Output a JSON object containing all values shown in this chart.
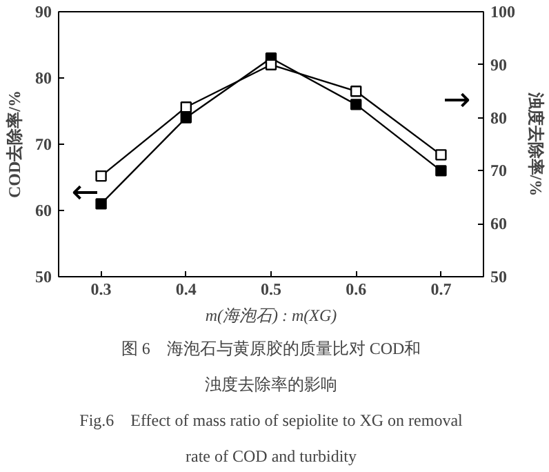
{
  "chart_data": {
    "type": "line",
    "xlabel": "m(海泡石) : m(XG)",
    "ylabel": "COD去除率/%",
    "y2label": "浊度去除率/%",
    "x": [
      0.3,
      0.4,
      0.5,
      0.6,
      0.7
    ],
    "series": [
      {
        "color": "#000000",
        "values": [
          61,
          74,
          83,
          76,
          66
        ]
      },
      {
        "color": "#000000",
        "values": [
          69,
          82,
          90,
          85,
          73
        ],
        "axis": "y2"
      }
    ],
    "xlim": [
      0.25,
      0.75
    ],
    "xticks": [
      0.3,
      0.4,
      0.5,
      0.6,
      0.7
    ],
    "ylim": [
      50,
      90
    ],
    "yticks": [
      50,
      60,
      70,
      80,
      90
    ],
    "y2lim": [
      50,
      100
    ],
    "y2ticks": [
      50,
      60,
      70,
      80,
      90,
      100
    ],
    "marker": "square",
    "line_style": "solid",
    "grid": false,
    "annotations": [
      "←",
      "→",
      "图 6　海泡石与黄原胶的质量比对 COD和",
      "浊度去除率的影响",
      "Fig.6　Effect of mass ratio of sepiolite to XG on removal",
      "rate of COD and turbidity"
    ]
  }
}
